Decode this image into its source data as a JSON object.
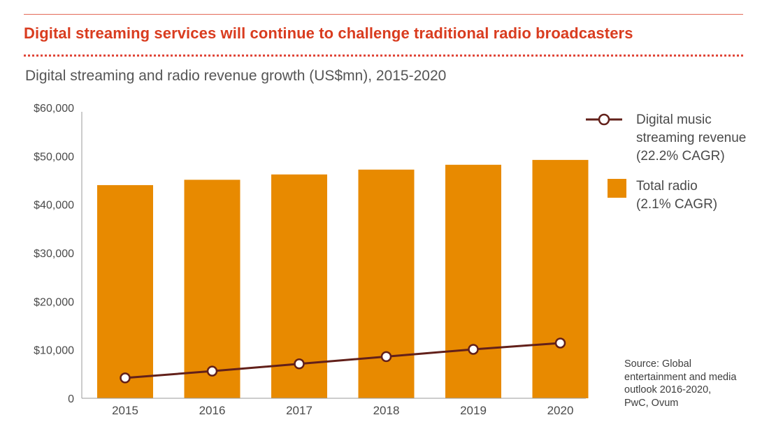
{
  "header": {
    "title": "Digital streaming services will continue to challenge traditional radio broadcasters",
    "subtitle": "Digital streaming and radio revenue growth (US$mn), 2015-2020"
  },
  "source_lines": [
    "Source: Global",
    "entertainment and media",
    "outlook 2016-2020,",
    "PwC, Ovum"
  ],
  "colors": {
    "bar": "#e88a00",
    "line": "#62201a",
    "title": "#d93c1f",
    "axis": "#9a9a9a"
  },
  "chart_data": {
    "type": "bar",
    "categories": [
      "2015",
      "2016",
      "2017",
      "2018",
      "2019",
      "2020"
    ],
    "y_ticks": [
      "0",
      "$10,000",
      "$20,000",
      "$30,000",
      "$40,000",
      "$50,000",
      "$60,000"
    ],
    "ylim": [
      0,
      60000
    ],
    "grid": false,
    "legend_position": "top-right",
    "series": [
      {
        "name": "Total radio",
        "legend_lines": [
          "Total radio",
          "(2.1% CAGR)"
        ],
        "type": "bar",
        "values": [
          44000,
          45100,
          46200,
          47200,
          48200,
          49200
        ]
      },
      {
        "name": "Digital music streaming revenue",
        "legend_lines": [
          "Digital music",
          "streaming revenue",
          "(22.2% CAGR)"
        ],
        "type": "line",
        "values": [
          4200,
          5600,
          7100,
          8600,
          10100,
          11400
        ]
      }
    ]
  }
}
